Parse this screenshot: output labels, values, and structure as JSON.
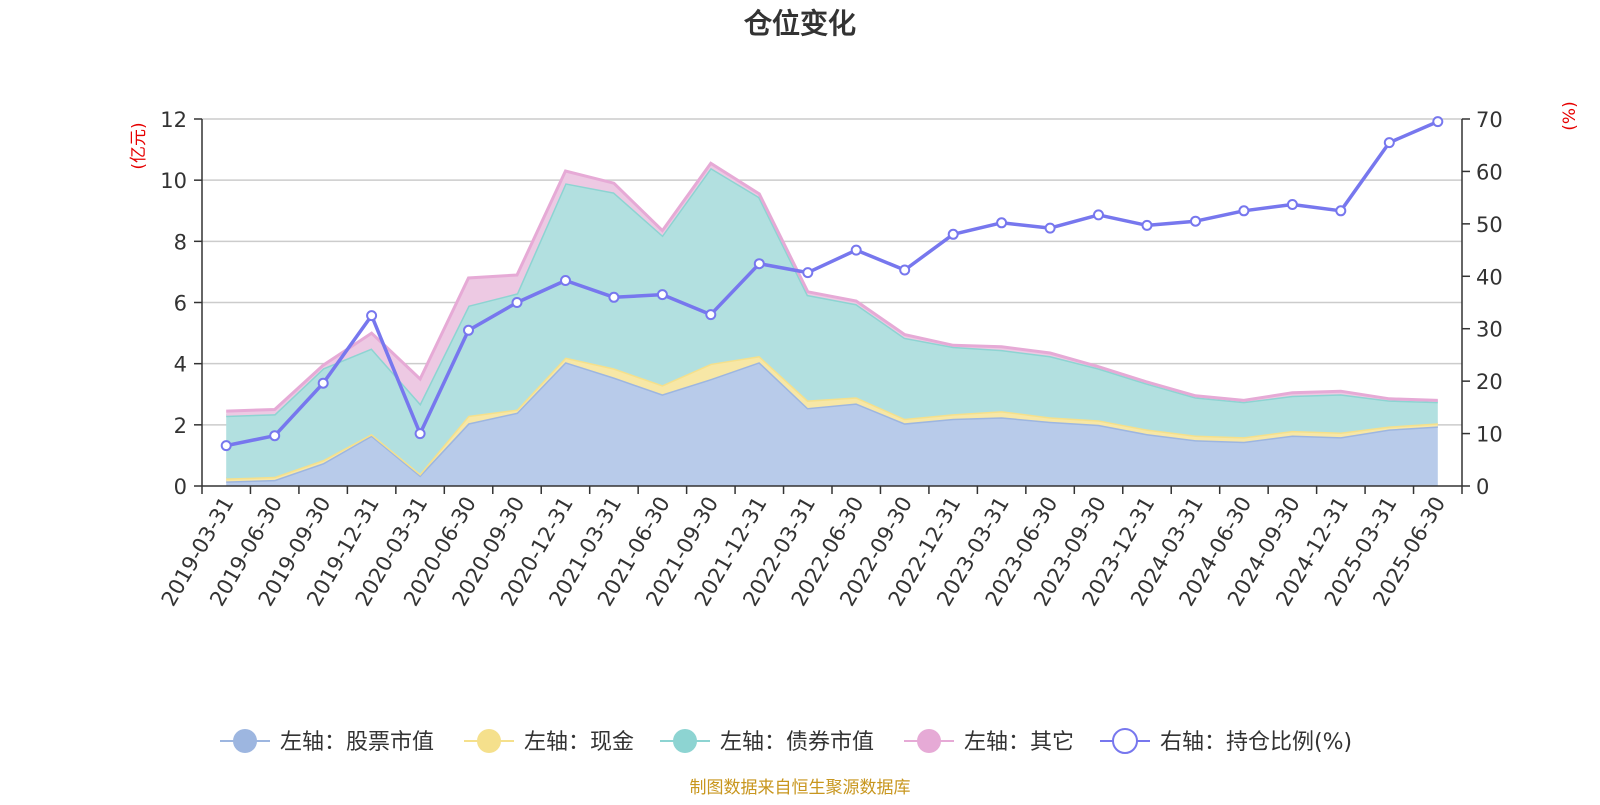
{
  "chart_data": {
    "type": "area",
    "title": "仓位变化",
    "left_axis_unit": "(亿元)",
    "right_axis_unit": "(%)",
    "categories": [
      "2019-03-31",
      "2019-06-30",
      "2019-09-30",
      "2019-12-31",
      "2020-03-31",
      "2020-06-30",
      "2020-09-30",
      "2020-12-31",
      "2021-03-31",
      "2021-06-30",
      "2021-09-30",
      "2021-12-31",
      "2022-03-31",
      "2022-06-30",
      "2022-09-30",
      "2022-12-31",
      "2023-03-31",
      "2023-06-30",
      "2023-09-30",
      "2023-12-31",
      "2024-03-31",
      "2024-06-30",
      "2024-09-30",
      "2024-12-31",
      "2025-03-31",
      "2025-06-30"
    ],
    "ylim_left": [
      0,
      12
    ],
    "ylim_right": [
      0,
      70
    ],
    "yticks_left": [
      0,
      2,
      4,
      6,
      8,
      10,
      12
    ],
    "yticks_right": [
      0,
      10,
      20,
      30,
      40,
      50,
      60,
      70
    ],
    "grid": true,
    "legend_position": "bottom",
    "series": [
      {
        "name": "左轴：股票市值",
        "axis": "left",
        "kind": "stacked-area",
        "color": "#9db6e0",
        "fill": "#b8cbea",
        "values": [
          0.15,
          0.2,
          0.75,
          1.65,
          0.35,
          2.05,
          2.4,
          4.05,
          3.55,
          3.0,
          3.5,
          4.05,
          2.55,
          2.7,
          2.05,
          2.2,
          2.25,
          2.1,
          2.0,
          1.7,
          1.5,
          1.45,
          1.65,
          1.6,
          1.85,
          1.95
        ]
      },
      {
        "name": "左轴：现金",
        "axis": "left",
        "kind": "stacked-area",
        "color": "#f5e08c",
        "fill": "#f7e7a6",
        "values": [
          0.1,
          0.1,
          0.1,
          0.05,
          0.05,
          0.25,
          0.1,
          0.15,
          0.3,
          0.3,
          0.5,
          0.2,
          0.25,
          0.2,
          0.15,
          0.15,
          0.2,
          0.15,
          0.15,
          0.15,
          0.15,
          0.15,
          0.15,
          0.15,
          0.1,
          0.1
        ]
      },
      {
        "name": "左轴：债券市值",
        "axis": "left",
        "kind": "stacked-area",
        "color": "#8dd4d2",
        "fill": "#b2e0e0",
        "values": [
          2.05,
          2.05,
          3.0,
          2.8,
          2.3,
          3.6,
          3.8,
          5.7,
          5.75,
          4.9,
          6.4,
          5.2,
          3.45,
          3.05,
          2.65,
          2.2,
          2.0,
          2.0,
          1.7,
          1.5,
          1.25,
          1.15,
          1.15,
          1.25,
          0.85,
          0.7
        ]
      },
      {
        "name": "左轴：其它",
        "axis": "left",
        "kind": "stacked-area",
        "color": "#e6aad6",
        "fill": "#edc9e3",
        "values": [
          0.15,
          0.15,
          0.1,
          0.5,
          0.8,
          0.9,
          0.6,
          0.4,
          0.3,
          0.15,
          0.15,
          0.1,
          0.1,
          0.1,
          0.1,
          0.05,
          0.1,
          0.1,
          0.05,
          0.05,
          0.05,
          0.05,
          0.1,
          0.1,
          0.05,
          0.05
        ]
      },
      {
        "name": "右轴：持仓比例(%)",
        "axis": "right",
        "kind": "line",
        "color": "#7777ee",
        "values": [
          7.7,
          9.6,
          19.6,
          32.5,
          10.0,
          29.7,
          35.0,
          39.2,
          36.0,
          36.5,
          32.7,
          42.4,
          40.7,
          45.0,
          41.2,
          48.0,
          50.2,
          49.2,
          51.7,
          49.7,
          50.5,
          52.5,
          53.7,
          52.5,
          65.5,
          69.5
        ]
      }
    ]
  },
  "footer": {
    "source": "制图数据来自恒生聚源数据库"
  }
}
